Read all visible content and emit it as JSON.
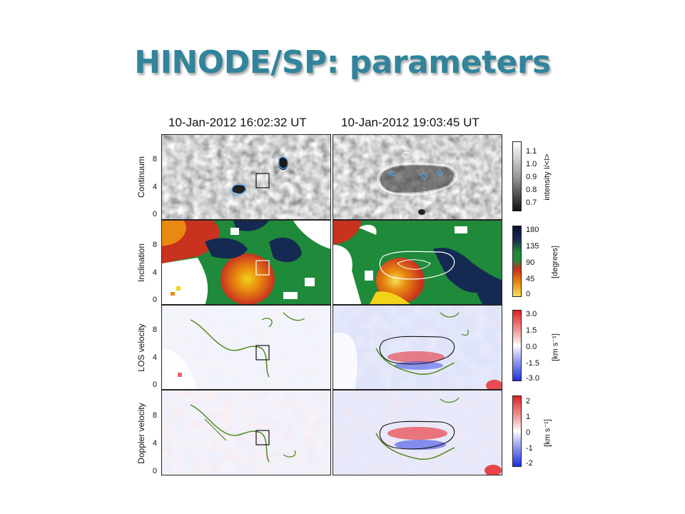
{
  "slide": {
    "title": "HINODE/SP: parameters",
    "title_color": "#31849b"
  },
  "columns": [
    {
      "time": "10-Jan-2012 16:02:32 UT"
    },
    {
      "time": "10-Jan-2012 19:03:45 UT"
    }
  ],
  "rows": [
    {
      "label": "Continuum",
      "yticks": [
        "0",
        "4",
        "8"
      ],
      "colorbar": {
        "ticks": [
          "1.1",
          "1.0",
          "0.9",
          "0.8",
          "0.7"
        ],
        "unit": "intensity I/<I>",
        "colormap": "grayscale"
      }
    },
    {
      "label": "Inclination",
      "yticks": [
        "0",
        "4",
        "8"
      ],
      "colorbar": {
        "ticks": [
          "180",
          "135",
          "90",
          "45",
          "0"
        ],
        "unit": "[degrees]",
        "colormap": "yellow-red-green-navy"
      }
    },
    {
      "label": "LOS velocity",
      "yticks": [
        "0",
        "4",
        "8"
      ],
      "colorbar": {
        "ticks": [
          "3.0",
          "1.5",
          "0.0",
          "-1.5",
          "-3.0"
        ],
        "unit": "[km s⁻¹]",
        "colormap": "blue-white-red"
      }
    },
    {
      "label": "Doppler velocity",
      "yticks": [
        "0",
        "4",
        "8"
      ],
      "colorbar": {
        "ticks": [
          "2",
          "1",
          "0",
          "-1",
          "-2"
        ],
        "unit": "[km s⁻¹]",
        "colormap": "blue-white-red"
      }
    }
  ],
  "colors": {
    "contour_green": "#4f8a1e",
    "contour_white": "#ffffff",
    "contour_black": "#111111",
    "contour_cyan": "#4aa8ff",
    "incl_green": "#1f8a3a",
    "incl_navy": "#152a52",
    "incl_red": "#c8321e",
    "incl_orange": "#e88a10",
    "incl_yellow": "#f2d21a",
    "vel_red": "#e8262a",
    "vel_blue": "#1f2fe0"
  }
}
